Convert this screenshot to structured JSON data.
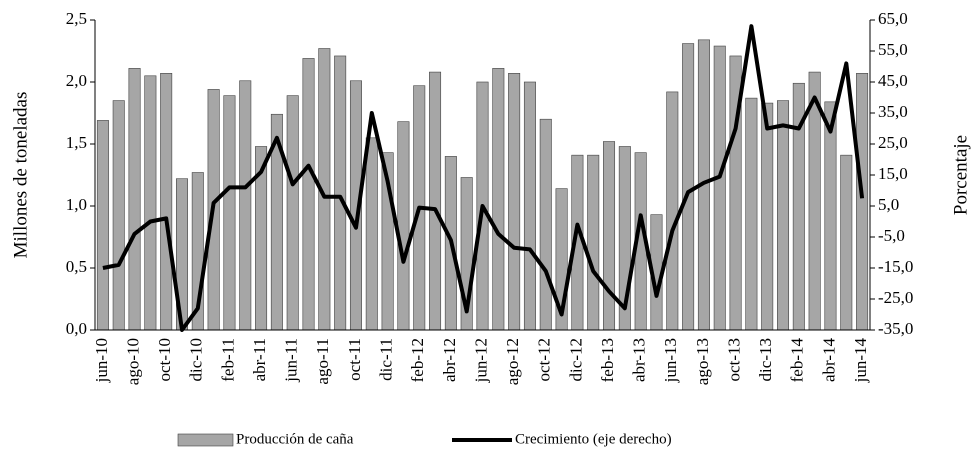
{
  "chart_data": {
    "type": "bar-line",
    "y_label": "Millones de toneladas",
    "y2_label": "Porcentaje",
    "categories": [
      "jun-10",
      null,
      "ago-10",
      null,
      "oct-10",
      null,
      "dic-10",
      null,
      "feb-11",
      null,
      "abr-11",
      null,
      "jun-11",
      null,
      "ago-11",
      null,
      "oct-11",
      null,
      "dic-11",
      null,
      "feb-12",
      null,
      "abr-12",
      null,
      "jun-12",
      null,
      "ago-12",
      null,
      "oct-12",
      null,
      "dic-12",
      null,
      "feb-13",
      null,
      "abr-13",
      null,
      "jun-13",
      null,
      "ago-13",
      null,
      "oct-13",
      null,
      "dic-13",
      null,
      "feb-14",
      null,
      "abr-14",
      null,
      "jun-14"
    ],
    "series": [
      {
        "name": "Producción de caña",
        "color": "#a6a6a6",
        "values": [
          1.69,
          1.85,
          2.11,
          2.05,
          2.07,
          1.22,
          1.27,
          1.94,
          1.89,
          2.01,
          1.48,
          1.74,
          1.89,
          2.19,
          2.27,
          2.21,
          2.01,
          1.55,
          1.43,
          1.68,
          1.97,
          2.08,
          1.4,
          1.23,
          2.0,
          2.11,
          2.07,
          2.0,
          1.7,
          1.14,
          1.41,
          1.41,
          1.52,
          1.48,
          1.43,
          0.93,
          1.92,
          2.31,
          2.34,
          2.29,
          2.21,
          1.87,
          1.83,
          1.85,
          1.99,
          2.08,
          1.84,
          1.41,
          2.07
        ]
      },
      {
        "name": "Crecimiento (eje derecho)",
        "color": "#000000",
        "axis": "y2",
        "values": [
          -15,
          -14,
          -4,
          0,
          1,
          -35,
          -28,
          6,
          11,
          11,
          16,
          27,
          12,
          18,
          8,
          8,
          -2,
          35,
          13,
          -13,
          4.5,
          4,
          -6,
          -29,
          5,
          -4,
          -8.5,
          -9,
          -16,
          -30,
          -1,
          -16,
          -22.5,
          -28,
          2,
          -24,
          -3,
          9.5,
          12.5,
          14.5,
          30,
          63,
          30,
          31,
          30,
          40,
          29,
          51,
          7.5
        ]
      }
    ],
    "ylim": [
      0,
      2.5
    ],
    "yticks": [
      {
        "value": 0,
        "label": "0,0"
      },
      {
        "value": 0.5,
        "label": "0,5"
      },
      {
        "value": 1,
        "label": "1,0"
      },
      {
        "value": 1.5,
        "label": "1,5"
      },
      {
        "value": 2,
        "label": "2,0"
      },
      {
        "value": 2.5,
        "label": "2,5"
      }
    ],
    "y2lim": [
      -35,
      65
    ],
    "y2ticks": [
      {
        "value": -35,
        "label": "-35,0"
      },
      {
        "value": -25,
        "label": "-25,0"
      },
      {
        "value": -15,
        "label": "-15,0"
      },
      {
        "value": -5,
        "label": "-5,0"
      },
      {
        "value": 5,
        "label": "5,0"
      },
      {
        "value": 15,
        "label": "15,0"
      },
      {
        "value": 25,
        "label": "25,0"
      },
      {
        "value": 35,
        "label": "35,0"
      },
      {
        "value": 45,
        "label": "45,0"
      },
      {
        "value": 55,
        "label": "55,0"
      },
      {
        "value": 65,
        "label": "65,0"
      }
    ],
    "legend": "bottom"
  }
}
